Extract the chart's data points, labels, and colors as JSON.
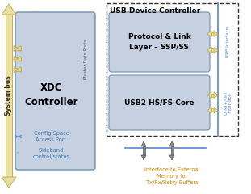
{
  "fig_width": 3.11,
  "fig_height": 2.4,
  "dpi": 100,
  "bg_color": "#ffffff",
  "arrow_fill": "#e8dfa0",
  "arrow_edge": "#b8a84a",
  "xdc_box_color": "#c5d0e0",
  "xdc_box_edge": "#7090b0",
  "usb_outer_box_edge": "#333333",
  "usb_inner_box_color": "#c5d0e0",
  "usb_inner_box_edge": "#7090b0",
  "pipe_line_color": "#5588cc",
  "config_text_color": "#4477aa",
  "sideband_text_color": "#4477aa",
  "sideband_line_color": "#5588cc",
  "ext_mem_text_color": "#cc8800",
  "title_color": "#000000",
  "box_text_color": "#000000",
  "label_color": "#5588cc",
  "title_text": "USB Device Controller",
  "proto_text": "Protocol & Link\nLayer – SSP/SS",
  "usb2_text": "USB2 HS/FS Core",
  "xdc_text": "XDC\nController",
  "systembus_text": "System bus",
  "master_text": "Master Data Ports",
  "config_text": "Config Space\nAccess Port",
  "sideband_text": "Sideband\ncontrol/status",
  "ext_mem_text": "Interface to External\nMemory for\nTx/Rx/Retry Buffers",
  "pipe_label": "PIPE Interface",
  "utmi_label": "UTMI+/UPI\nInterface"
}
